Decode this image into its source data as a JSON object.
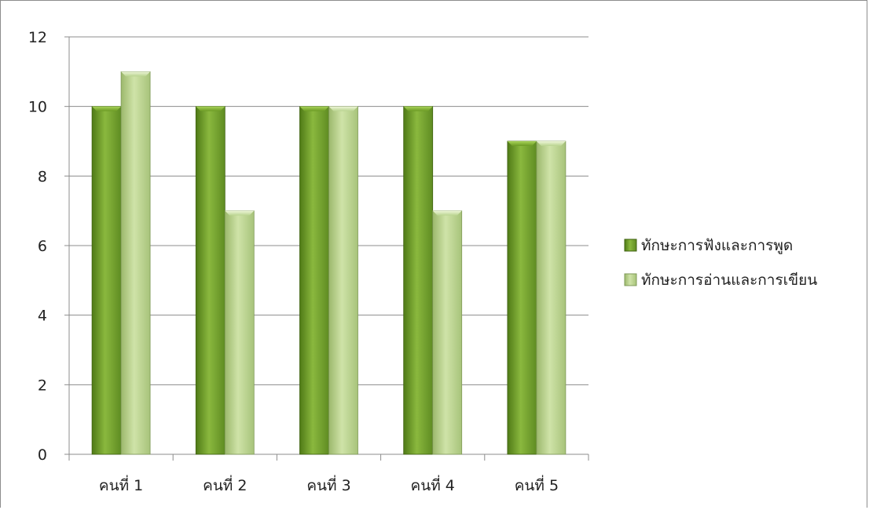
{
  "chart_data": {
    "type": "bar",
    "title": "",
    "xlabel": "",
    "ylabel": "",
    "categories": [
      "คนที่ 1",
      "คนที่ 2",
      "คนที่ 3",
      "คนที่ 4",
      "คนที่ 5"
    ],
    "series": [
      {
        "name": "ทักษะการฟังและการพูด",
        "values": [
          10,
          10,
          10,
          10,
          9
        ],
        "color": "#6e9a2a",
        "light": "#9bc451"
      },
      {
        "name": "ทักษะการอ่านและการเขียน",
        "values": [
          11,
          7,
          10,
          7,
          9
        ],
        "color": "#a8c47a",
        "light": "#d3e6b0"
      }
    ],
    "ylim": [
      0,
      12
    ],
    "yticks": [
      "0",
      "2",
      "4",
      "6",
      "8",
      "10",
      "12"
    ],
    "grid": true,
    "legend_position": "right"
  }
}
